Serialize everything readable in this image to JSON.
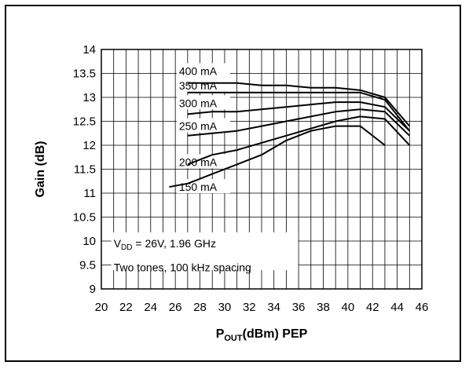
{
  "chart_data": {
    "type": "line",
    "xlabel_main": "P",
    "xlabel_sub": "OUT",
    "xlabel_rest": "(dBm) PEP",
    "ylabel": "Gain (dB)",
    "xlim": [
      20,
      46
    ],
    "ylim": [
      9,
      14
    ],
    "x_ticks": [
      "20",
      "22",
      "24",
      "26",
      "28",
      "30",
      "32",
      "34",
      "36",
      "38",
      "40",
      "42",
      "44",
      "46"
    ],
    "y_ticks": [
      "9",
      "9.5",
      "10",
      "10.5",
      "11",
      "11.5",
      "12",
      "12.5",
      "13",
      "13.5",
      "14"
    ],
    "grid": true,
    "annotation": {
      "line1_pre": "V",
      "line1_sub": "DD",
      "line1_post": " = 26V, 1.96 GHz",
      "line2": "Two tones, 100 kHz spacing"
    },
    "series": [
      {
        "name": "400 mA",
        "x": [
          27,
          29,
          31,
          33,
          35,
          37,
          39,
          41,
          43,
          45
        ],
        "y": [
          13.3,
          13.3,
          13.3,
          13.25,
          13.25,
          13.2,
          13.2,
          13.15,
          13.0,
          12.4
        ],
        "label_pos": [
          26.3,
          13.5
        ]
      },
      {
        "name": "350 mA",
        "x": [
          27,
          29,
          31,
          33,
          35,
          37,
          39,
          41,
          43,
          45
        ],
        "y": [
          13.1,
          13.1,
          13.1,
          13.1,
          13.1,
          13.1,
          13.1,
          13.1,
          12.95,
          12.3
        ],
        "label_pos": [
          26.3,
          13.2
        ]
      },
      {
        "name": "300 mA",
        "x": [
          27,
          29,
          31,
          33,
          35,
          37,
          39,
          41,
          43,
          45
        ],
        "y": [
          12.65,
          12.7,
          12.7,
          12.75,
          12.8,
          12.85,
          12.9,
          12.9,
          12.8,
          12.3
        ],
        "label_pos": [
          26.3,
          12.83
        ]
      },
      {
        "name": "250 mA",
        "x": [
          27,
          29,
          31,
          33,
          35,
          37,
          39,
          41,
          43,
          45
        ],
        "y": [
          12.2,
          12.25,
          12.3,
          12.4,
          12.5,
          12.6,
          12.7,
          12.75,
          12.7,
          12.2
        ],
        "label_pos": [
          26.3,
          12.35
        ]
      },
      {
        "name": "200 mA",
        "x": [
          27,
          29,
          31,
          33,
          35,
          37,
          39,
          41,
          43,
          45
        ],
        "y": [
          11.6,
          11.8,
          11.9,
          12.05,
          12.2,
          12.35,
          12.5,
          12.6,
          12.55,
          12.0
        ],
        "label_pos": [
          26.3,
          11.6
        ]
      },
      {
        "name": "150 mA",
        "x": [
          25.5,
          27,
          29,
          31,
          33,
          35,
          37,
          39,
          41,
          43
        ],
        "y": [
          11.13,
          11.2,
          11.4,
          11.6,
          11.8,
          12.1,
          12.3,
          12.4,
          12.4,
          12.0
        ],
        "label_pos": [
          26.3,
          11.08
        ]
      }
    ]
  }
}
